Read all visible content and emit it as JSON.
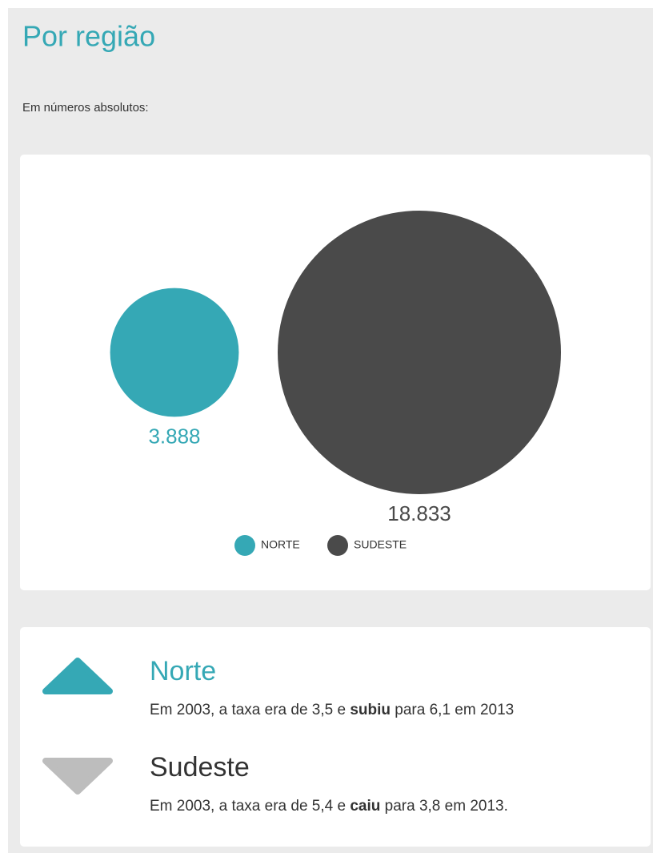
{
  "header": {
    "title": "Por região",
    "subtitle": "Em números absolutos:"
  },
  "chart_data": {
    "type": "bubble",
    "categories": [
      "NORTE",
      "SUDESTE"
    ],
    "values": [
      3888,
      18833
    ],
    "value_labels": [
      "3.888",
      "18.833"
    ],
    "colors": [
      "#35a8b5",
      "#4a4a4a"
    ]
  },
  "cards": [
    {
      "title": "Norte",
      "direction": "up",
      "color": "#35a8b5",
      "text": [
        "Em 2003, a taxa era de 3,5 e ",
        "subiu",
        " para 6,1 em 2013"
      ]
    },
    {
      "title": "Sudeste",
      "direction": "down",
      "color": "#bdbdbd",
      "text": [
        "Em 2003, a taxa era de 5,4 e ",
        "caiu",
        " para 3,8 em 2013."
      ]
    }
  ]
}
